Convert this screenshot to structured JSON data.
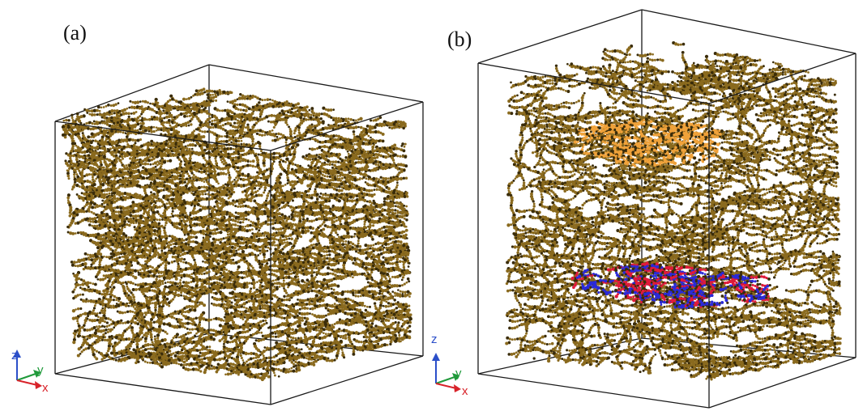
{
  "figure": {
    "panels": [
      {
        "label": "(a)",
        "axes": {
          "z_label": "z",
          "y_label": "y",
          "x_label": "x"
        }
      },
      {
        "label": "(b)",
        "axes": {
          "z_label": "z",
          "y_label": "y",
          "x_label": "x"
        }
      }
    ]
  },
  "colors": {
    "chains": "#8a6a1e",
    "chain_dark": "#3a2c0a",
    "highlight_orange": "#f0a23a",
    "highlight_blue": "#2a2ad8",
    "highlight_red": "#e01a3a",
    "box_edges": "#1a1a1a",
    "axis_z": "#2b4fc9",
    "axis_y": "#1f9a3a",
    "axis_x": "#d8232a"
  }
}
